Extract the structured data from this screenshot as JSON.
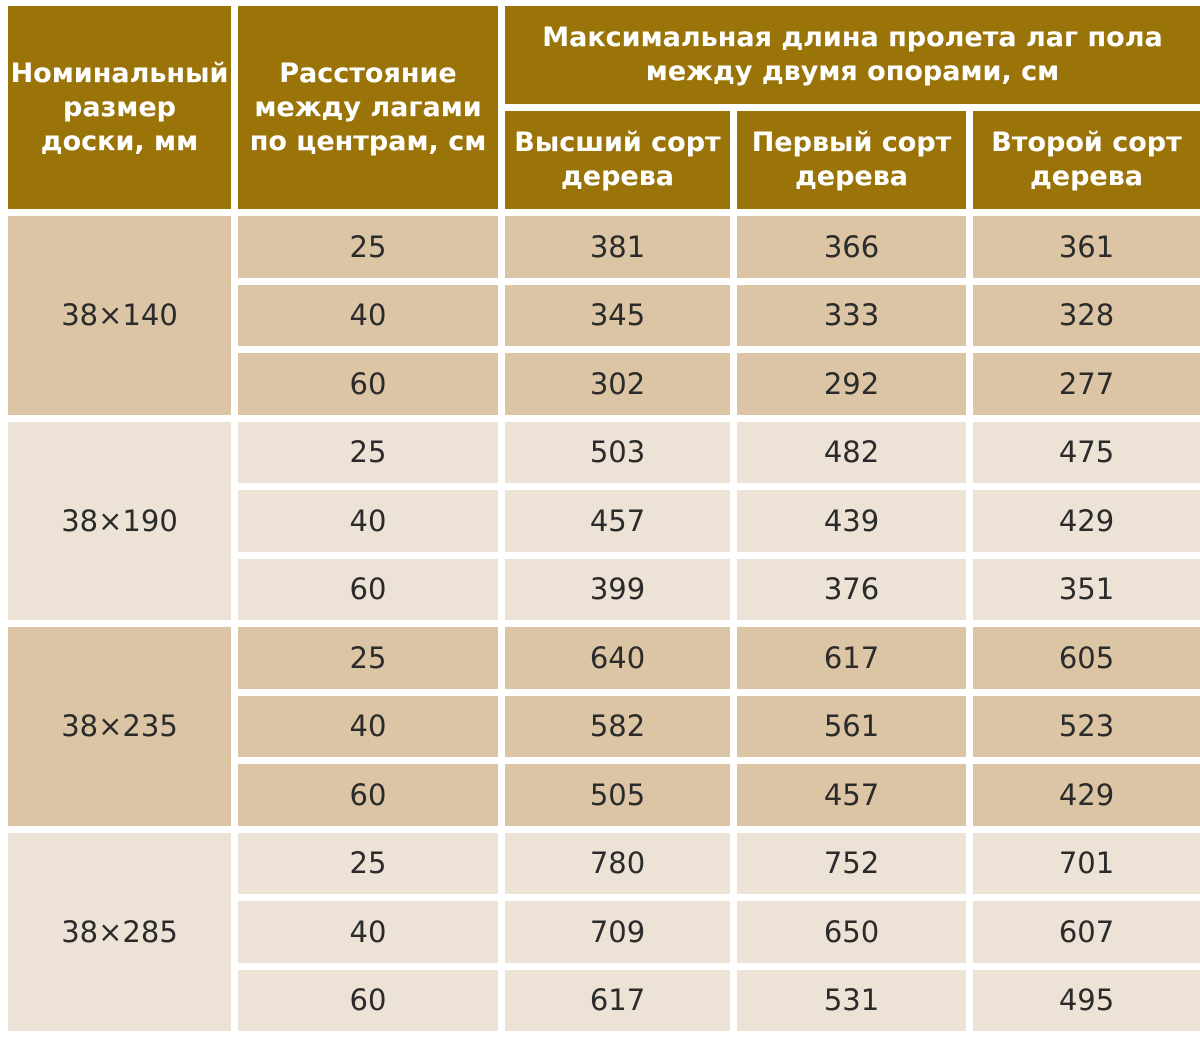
{
  "headers": {
    "nominal_size": "Номинальный\nразмер\nдоски, мм",
    "joist_spacing": "Расстояние\nмежду лагами\nпо центрам, см",
    "max_span": "Максимальная длина пролета лаг пола\nмежду двумя опорами, см",
    "grade_premium": "Высший сорт\nдерева",
    "grade_first": "Первый сорт\nдерева",
    "grade_second": "Второй сорт\nдерева"
  },
  "groups": [
    {
      "size": "38×140",
      "rows": [
        {
          "spacing": "25",
          "premium": "381",
          "first": "366",
          "second": "361"
        },
        {
          "spacing": "40",
          "premium": "345",
          "first": "333",
          "second": "328"
        },
        {
          "spacing": "60",
          "premium": "302",
          "first": "292",
          "second": "277"
        }
      ]
    },
    {
      "size": "38×190",
      "rows": [
        {
          "spacing": "25",
          "premium": "503",
          "first": "482",
          "second": "475"
        },
        {
          "spacing": "40",
          "premium": "457",
          "first": "439",
          "second": "429"
        },
        {
          "spacing": "60",
          "premium": "399",
          "first": "376",
          "second": "351"
        }
      ]
    },
    {
      "size": "38×235",
      "rows": [
        {
          "spacing": "25",
          "premium": "640",
          "first": "617",
          "second": "605"
        },
        {
          "spacing": "40",
          "premium": "582",
          "first": "561",
          "second": "523"
        },
        {
          "spacing": "60",
          "premium": "505",
          "first": "457",
          "second": "429"
        }
      ]
    },
    {
      "size": "38×285",
      "rows": [
        {
          "spacing": "25",
          "premium": "780",
          "first": "752",
          "second": "701"
        },
        {
          "spacing": "40",
          "premium": "709",
          "first": "650",
          "second": "607"
        },
        {
          "spacing": "60",
          "premium": "617",
          "first": "531",
          "second": "495"
        }
      ]
    }
  ],
  "colors": {
    "header_bg": "#9a7409",
    "header_text": "#ffffff",
    "group_dark_bg": "#dcc5a5",
    "group_light_bg": "#ece3d6",
    "value_text": "#2b2b2b"
  }
}
